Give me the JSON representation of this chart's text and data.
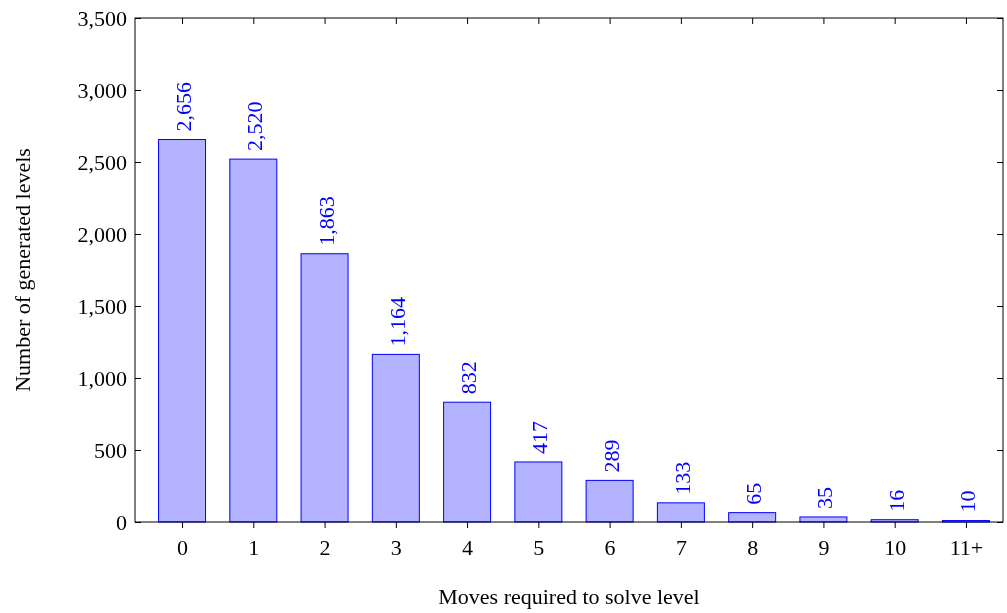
{
  "chart_data": {
    "type": "bar",
    "xlabel": "Moves required to solve level",
    "ylabel": "Number of generated levels",
    "categories": [
      "0",
      "1",
      "2",
      "3",
      "4",
      "5",
      "6",
      "7",
      "8",
      "9",
      "10",
      "11+"
    ],
    "values": [
      2656,
      2520,
      1863,
      1164,
      832,
      417,
      289,
      133,
      65,
      35,
      16,
      10
    ],
    "value_labels": [
      "2,656",
      "2,520",
      "1,863",
      "1,164",
      "832",
      "417",
      "289",
      "133",
      "65",
      "35",
      "16",
      "10"
    ],
    "color": "#b3b3ff",
    "ylim": [
      0,
      3500
    ],
    "yticks": [
      0,
      500,
      {
        "value": 1000,
        "label": "1,000"
      },
      {
        "value": 1500,
        "label": "1,500"
      },
      {
        "value": 2000,
        "label": "2,000"
      },
      {
        "value": 2500,
        "label": "2,500"
      },
      {
        "value": 3000,
        "label": "3,000"
      },
      {
        "value": 3500,
        "label": "3,500"
      }
    ],
    "grid": false
  }
}
